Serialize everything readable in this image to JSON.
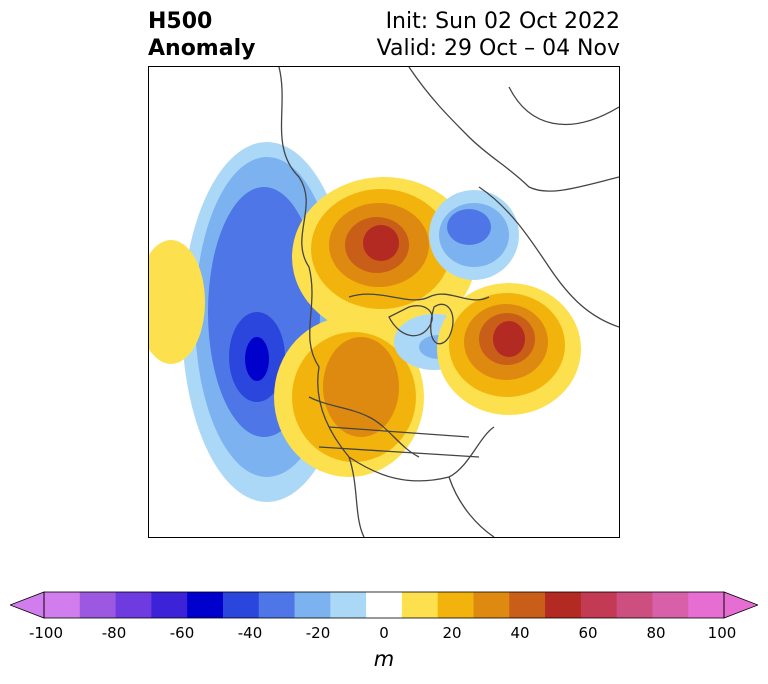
{
  "header": {
    "title_line1": "H500",
    "title_line2": "Anomaly",
    "init_text": "Init: Sun 02 Oct 2022",
    "valid_text": "Valid: 29 Oct – 04 Nov"
  },
  "colorbar": {
    "unit": "m",
    "tick_labels": [
      "-100",
      "-80",
      "-60",
      "-40",
      "-20",
      "0",
      "20",
      "40",
      "60",
      "80",
      "100"
    ],
    "colors": [
      "#d17ded",
      "#9c58e0",
      "#6e3be0",
      "#3d23d8",
      "#0000cc",
      "#2a46dc",
      "#4e76e6",
      "#7cb2f0",
      "#acd8f7",
      "#ffffff",
      "#fde04e",
      "#f2b40c",
      "#de8a10",
      "#c85e18",
      "#b22a22",
      "#c23a54",
      "#cc4f80",
      "#d760a8",
      "#e66ed2"
    ],
    "left_extend_color": "#d17ded",
    "right_extend_color": "#e66ed2"
  },
  "map": {
    "projection": "polar-stereographic",
    "land_color": "#ffffff",
    "coast_color": "#444444",
    "anomaly_features": [
      {
        "name": "pacific-trough",
        "sign": "negative"
      },
      {
        "name": "west-pacific-ridge",
        "sign": "positive"
      },
      {
        "name": "arctic-ridge",
        "sign": "positive"
      },
      {
        "name": "north-america-ridge",
        "sign": "positive"
      },
      {
        "name": "siberia-trough",
        "sign": "negative"
      },
      {
        "name": "greenland-trough",
        "sign": "negative"
      },
      {
        "name": "atlantic-ridge",
        "sign": "positive"
      }
    ]
  }
}
